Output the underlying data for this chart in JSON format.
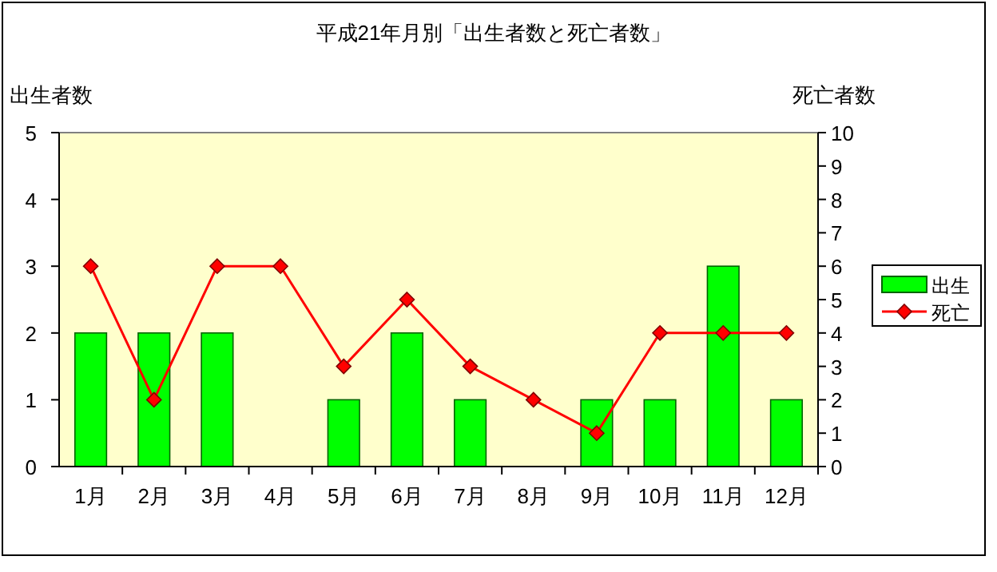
{
  "chart_data": {
    "type": "bar",
    "title": "平成21年月別「出生者数と死亡者数」",
    "ylabel": "出生者数",
    "y2label": "死亡者数",
    "categories": [
      "1月",
      "2月",
      "3月",
      "4月",
      "5月",
      "6月",
      "7月",
      "8月",
      "9月",
      "10月",
      "11月",
      "12月"
    ],
    "series": [
      {
        "name": "出生",
        "color": "#00ff00",
        "values": [
          2,
          2,
          2,
          0,
          1,
          2,
          1,
          0,
          1,
          1,
          3,
          1
        ]
      },
      {
        "name": "死亡",
        "type": "line",
        "axis": "y2",
        "color": "#ff0000",
        "values": [
          6,
          2,
          6,
          6,
          3,
          5,
          3,
          2,
          1,
          4,
          4,
          4
        ]
      }
    ],
    "ylim": [
      0,
      5
    ],
    "yticks": [
      0,
      1,
      2,
      3,
      4,
      5
    ],
    "y2lim": [
      0,
      10
    ],
    "y2ticks": [
      0,
      1,
      2,
      3,
      4,
      5,
      6,
      7,
      8,
      9,
      10
    ],
    "grid": false,
    "legend": "right",
    "marker": "diamond",
    "line_style": "solid"
  }
}
